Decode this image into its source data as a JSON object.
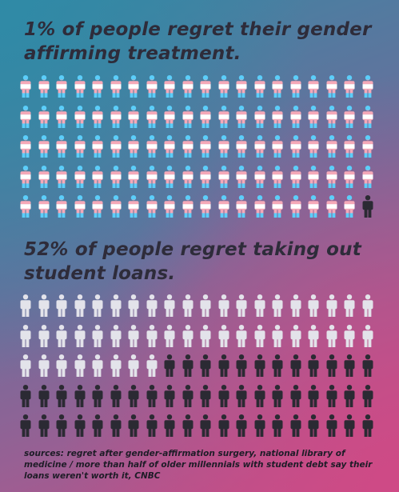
{
  "headline_1": "1% of people regret their gender affirming treatment.",
  "headline_2": "52% of people regret taking out student loans.",
  "sources": "sources: regret after gender-affirmation surgery, national library of medicine / more than half of older millennials with student debt say their loans weren't worth it, CNBC",
  "chart_data": [
    {
      "type": "pictogram",
      "total": 100,
      "highlighted": 1,
      "highlighted_percent": 1,
      "icon": "person-icon",
      "colors": {
        "base_blue": "#5bcefa",
        "base_pink": "#f5a9b8",
        "base_white": "#ffffff",
        "highlight": "#2b2a33"
      }
    },
    {
      "type": "pictogram",
      "total": 100,
      "highlighted": 52,
      "highlighted_percent": 52,
      "icon": "person-icon",
      "colors": {
        "base": "#e3e3ea",
        "highlight": "#2b2a33"
      }
    }
  ]
}
